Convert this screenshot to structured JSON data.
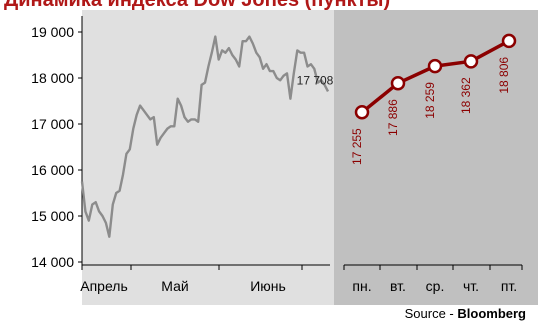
{
  "title": "Динамика индекса Dow Jones (пункты)",
  "source": {
    "prefix": "Source - ",
    "name": "Bloomberg"
  },
  "colors": {
    "left_bg": "#e0e0e0",
    "right_bg": "#c0c0c0",
    "left_line": "#8c8c8c",
    "right_line": "#8b0000",
    "label": "#8b0000"
  },
  "chart_data": [
    {
      "type": "line",
      "title": "",
      "x_tick_labels": [
        "Апрель",
        "Май",
        "Июнь"
      ],
      "y_tick_labels": [
        "14 000",
        "15 000",
        "16 000",
        "17 000",
        "18 000",
        "19 000"
      ],
      "ylim": [
        14000,
        19000
      ],
      "grid": false,
      "end_label": "17 708",
      "series": [
        {
          "values": [
            15750,
            15100,
            14900,
            15250,
            15300,
            15100,
            15000,
            14850,
            14550,
            15250,
            15500,
            15550,
            15900,
            16350,
            16450,
            16900,
            17200,
            17400,
            17300,
            17200,
            17100,
            17150,
            16550,
            16700,
            16800,
            16900,
            16950,
            16950,
            17550,
            17400,
            17150,
            17050,
            17100,
            17100,
            17050,
            17850,
            17900,
            18250,
            18550,
            18900,
            18400,
            18600,
            18550,
            18650,
            18500,
            18400,
            18250,
            18800,
            18800,
            18900,
            18750,
            18550,
            18450,
            18200,
            18300,
            18150,
            18150,
            18000,
            17950,
            18050,
            18100,
            17550,
            18100,
            18600,
            18550,
            18550,
            18250,
            18300,
            18200,
            17900,
            17950,
            17850,
            17708
          ]
        }
      ]
    },
    {
      "type": "line",
      "categories": [
        "пн.",
        "вт.",
        "ср.",
        "чт.",
        "пт."
      ],
      "values": [
        17255,
        17886,
        18259,
        18362,
        18806
      ],
      "labels": [
        "17 255",
        "17 886",
        "18 259",
        "18 362",
        "18 806"
      ],
      "ylim": [
        14000,
        19000
      ],
      "grid": false
    }
  ]
}
